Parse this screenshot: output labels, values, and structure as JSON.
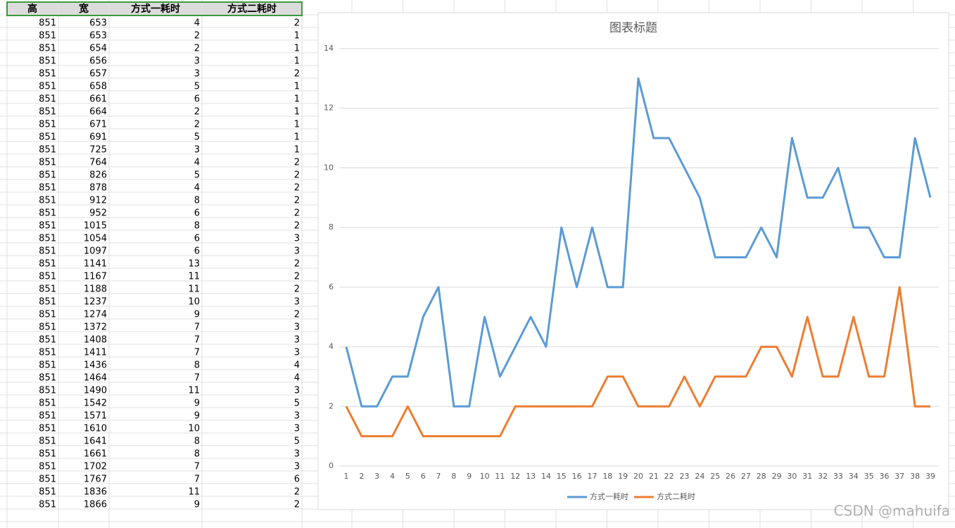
{
  "table": {
    "header": [
      "高",
      "宽",
      "方式一耗时",
      "方式二耗时"
    ],
    "rows": [
      [
        851,
        653,
        4,
        2
      ],
      [
        851,
        653,
        2,
        1
      ],
      [
        851,
        654,
        2,
        1
      ],
      [
        851,
        656,
        3,
        1
      ],
      [
        851,
        657,
        3,
        2
      ],
      [
        851,
        658,
        5,
        1
      ],
      [
        851,
        661,
        6,
        1
      ],
      [
        851,
        664,
        2,
        1
      ],
      [
        851,
        671,
        2,
        1
      ],
      [
        851,
        691,
        5,
        1
      ],
      [
        851,
        725,
        3,
        1
      ],
      [
        851,
        764,
        4,
        2
      ],
      [
        851,
        826,
        5,
        2
      ],
      [
        851,
        878,
        4,
        2
      ],
      [
        851,
        912,
        8,
        2
      ],
      [
        851,
        952,
        6,
        2
      ],
      [
        851,
        1015,
        8,
        2
      ],
      [
        851,
        1054,
        6,
        3
      ],
      [
        851,
        1097,
        6,
        3
      ],
      [
        851,
        1141,
        13,
        2
      ],
      [
        851,
        1167,
        11,
        2
      ],
      [
        851,
        1188,
        11,
        2
      ],
      [
        851,
        1237,
        10,
        3
      ],
      [
        851,
        1274,
        9,
        2
      ],
      [
        851,
        1372,
        7,
        3
      ],
      [
        851,
        1408,
        7,
        3
      ],
      [
        851,
        1411,
        7,
        3
      ],
      [
        851,
        1436,
        8,
        4
      ],
      [
        851,
        1464,
        7,
        4
      ],
      [
        851,
        1490,
        11,
        3
      ],
      [
        851,
        1542,
        9,
        5
      ],
      [
        851,
        1571,
        9,
        3
      ],
      [
        851,
        1610,
        10,
        3
      ],
      [
        851,
        1641,
        8,
        5
      ],
      [
        851,
        1661,
        8,
        3
      ],
      [
        851,
        1702,
        7,
        3
      ],
      [
        851,
        1767,
        7,
        6
      ],
      [
        851,
        1836,
        11,
        2
      ],
      [
        851,
        1866,
        9,
        2
      ]
    ]
  },
  "chart_data": {
    "type": "line",
    "title": "图表标题",
    "categories": [
      1,
      2,
      3,
      4,
      5,
      6,
      7,
      8,
      9,
      10,
      11,
      12,
      13,
      14,
      15,
      16,
      17,
      18,
      19,
      20,
      21,
      22,
      23,
      24,
      25,
      26,
      27,
      28,
      29,
      30,
      31,
      32,
      33,
      34,
      35,
      36,
      37,
      38,
      39
    ],
    "series": [
      {
        "name": "方式一耗时",
        "color": "#5b9bd5",
        "values": [
          4,
          2,
          2,
          3,
          3,
          5,
          6,
          2,
          2,
          5,
          3,
          4,
          5,
          4,
          8,
          6,
          8,
          6,
          6,
          13,
          11,
          11,
          10,
          9,
          7,
          7,
          7,
          8,
          7,
          11,
          9,
          9,
          10,
          8,
          8,
          7,
          7,
          11,
          9
        ]
      },
      {
        "name": "方式二耗时",
        "color": "#ed7d31",
        "values": [
          2,
          1,
          1,
          1,
          2,
          1,
          1,
          1,
          1,
          1,
          1,
          2,
          2,
          2,
          2,
          2,
          2,
          3,
          3,
          2,
          2,
          2,
          3,
          2,
          3,
          3,
          3,
          4,
          4,
          3,
          5,
          3,
          3,
          5,
          3,
          3,
          6,
          2,
          2
        ]
      }
    ],
    "ylim": [
      0,
      14
    ],
    "yticks": [
      0,
      2,
      4,
      6,
      8,
      10,
      12,
      14
    ],
    "grid": true,
    "legend": "bottom"
  },
  "watermark": "CSDN @mahuifa"
}
